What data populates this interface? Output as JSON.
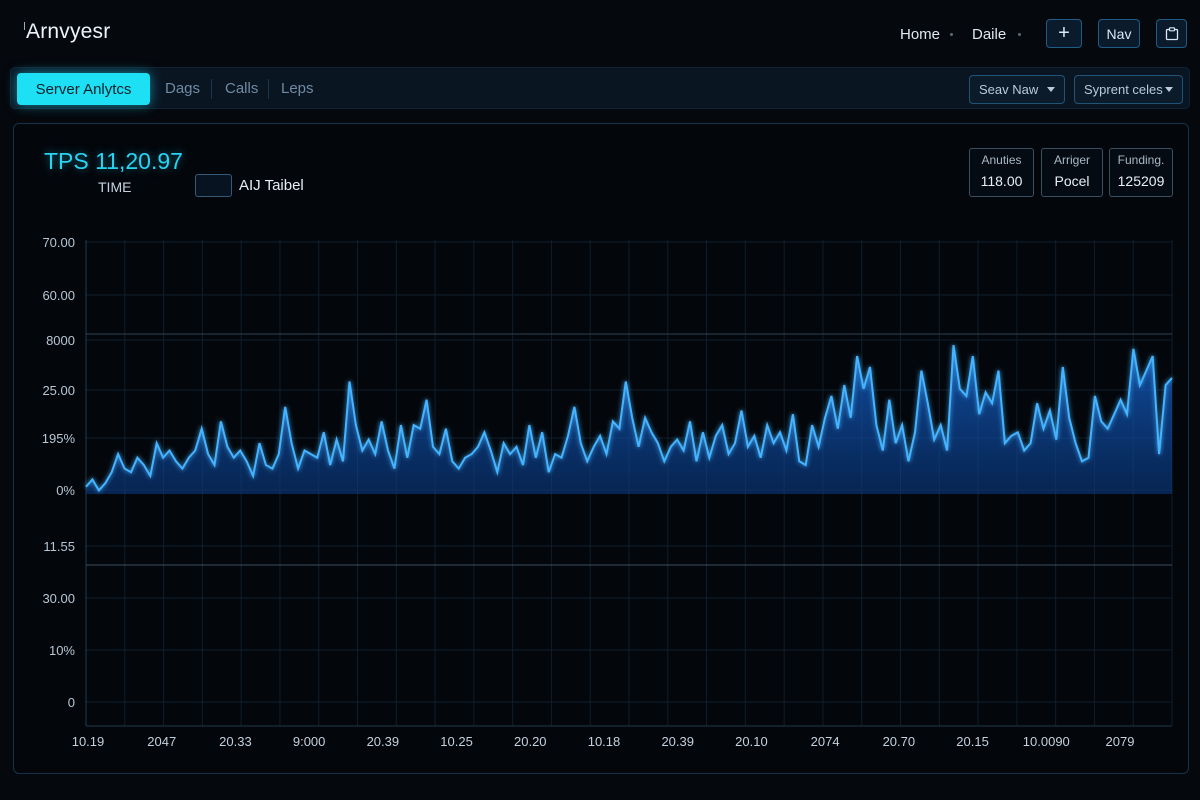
{
  "app": {
    "title": "Arnvyesr"
  },
  "nav": {
    "links": [
      "Home",
      "Daile"
    ],
    "plus_label": "+",
    "nav_label": "Nav",
    "clipboard_icon": "clipboard-icon"
  },
  "tabs": [
    {
      "label": "Server Anlytcs",
      "active": true
    },
    {
      "label": "Dags",
      "active": false
    },
    {
      "label": "Calls",
      "active": false
    },
    {
      "label": "Leps",
      "active": false
    }
  ],
  "dropdowns": [
    {
      "label": "Seav Naw"
    },
    {
      "label": "Syprent celes"
    }
  ],
  "panel": {
    "tps": "TPS 11,20.97",
    "time_label": "TIME",
    "legend_label": "AIJ Taibel",
    "stats": [
      {
        "key": "Anuties",
        "value": "118.00"
      },
      {
        "key": "Arriger",
        "value": "Pocel"
      },
      {
        "key": "Funding.",
        "value": "125209"
      }
    ]
  },
  "colors": {
    "accent": "#1ee0f5",
    "line": "#3aa6ff",
    "fill": "#0d4fa6",
    "background": "#05080d"
  },
  "chart_data": {
    "type": "area",
    "title": "",
    "xlabel": "",
    "ylabel": "",
    "y_tick_labels": [
      "70.00",
      "60.00",
      "8000",
      "25.00",
      "195%",
      "0%",
      "11.55",
      "30.00",
      "10%",
      "0"
    ],
    "x_tick_labels": [
      "10.19",
      "2047",
      "20.33",
      "9:000",
      "20.39",
      "10.25",
      "20.20",
      "10.18",
      "20.39",
      "20.10",
      "2074",
      "20.70",
      "20.15",
      "10.0090",
      "2079"
    ],
    "ylim": [
      0,
      70
    ],
    "grid": true,
    "series": [
      {
        "values": [
          2,
          4,
          1,
          3,
          6,
          11,
          7,
          6,
          10,
          8,
          5,
          14,
          10,
          12,
          9,
          7,
          10,
          12,
          18,
          11,
          8,
          20,
          13,
          10,
          12,
          9,
          5,
          14,
          8,
          7,
          11,
          24,
          14,
          7,
          12,
          11,
          10,
          17,
          8,
          15,
          9,
          31,
          19,
          12,
          15,
          11,
          20,
          12,
          7,
          19,
          10,
          19,
          18,
          26,
          13,
          11,
          18,
          9,
          7,
          10,
          11,
          13,
          17,
          12,
          6,
          14,
          11,
          13,
          8,
          19,
          10,
          17,
          6,
          11,
          10,
          16,
          24,
          14,
          9,
          13,
          16,
          11,
          20,
          18,
          31,
          21,
          13,
          21,
          17,
          14,
          9,
          13,
          15,
          12,
          20,
          9,
          17,
          10,
          16,
          19,
          11,
          14,
          23,
          13,
          16,
          10,
          19,
          14,
          17,
          12,
          22,
          9,
          8,
          19,
          13,
          21,
          27,
          18,
          30,
          21,
          38,
          29,
          35,
          19,
          12,
          26,
          14,
          19,
          9,
          17,
          34,
          25,
          15,
          19,
          12,
          41,
          29,
          27,
          38,
          22,
          28,
          25,
          34,
          14,
          16,
          17,
          12,
          14,
          25,
          18,
          23,
          15,
          35,
          21,
          14,
          9,
          10,
          27,
          20,
          18,
          22,
          26,
          22,
          40,
          30,
          34,
          38,
          11,
          30,
          32
        ]
      }
    ]
  }
}
